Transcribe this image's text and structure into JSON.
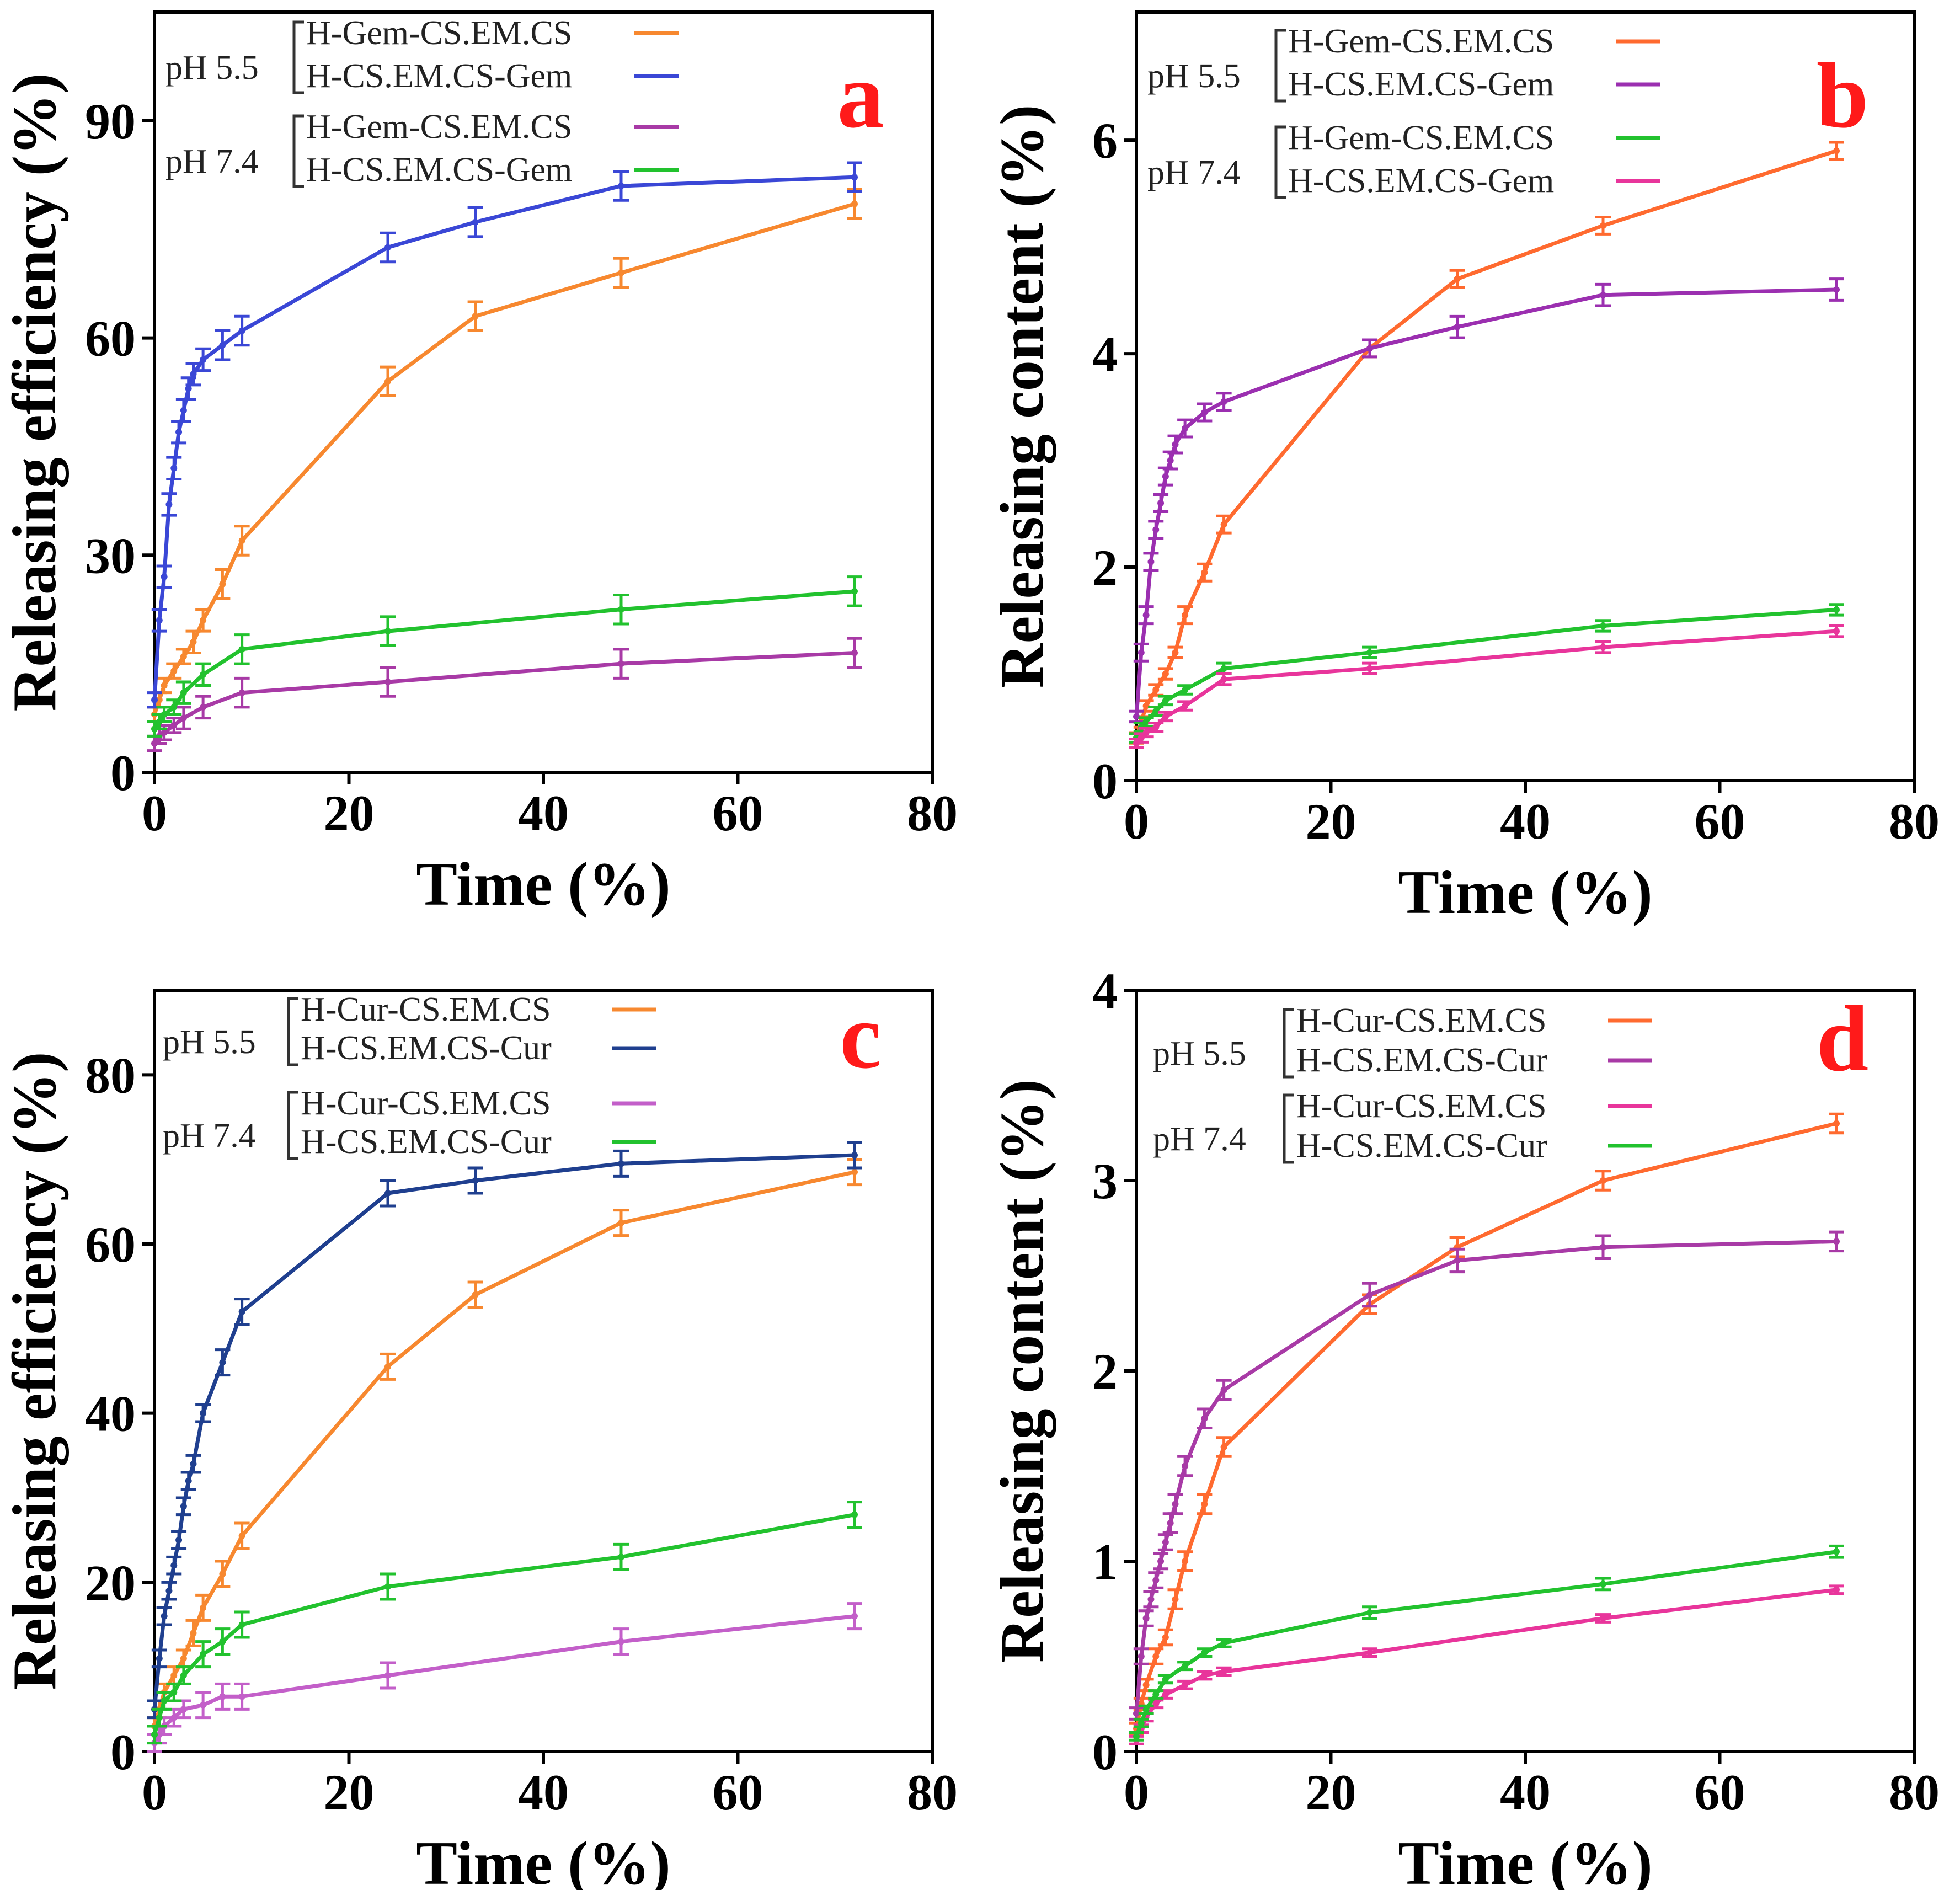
{
  "figure": {
    "panels": [
      "a",
      "b",
      "c",
      "d"
    ]
  },
  "chart_data": [
    {
      "panel": "a",
      "type": "line",
      "title": "",
      "xlabel": "Time (%)",
      "ylabel": "Releasing efficiency (%)",
      "xlim": [
        0,
        80
      ],
      "ylim": [
        0,
        105
      ],
      "xticks": [
        0,
        20,
        40,
        60,
        80
      ],
      "yticks": [
        0,
        30,
        60,
        90
      ],
      "legend_groups": [
        {
          "label": "pH 5.5",
          "entries": [
            0,
            1
          ]
        },
        {
          "label": "pH 7.4",
          "entries": [
            2,
            3
          ]
        }
      ],
      "series": [
        {
          "name": "H-Gem-CS.EM.CS",
          "color": "#f7882f",
          "x": [
            0,
            0.5,
            1,
            2,
            3,
            4,
            5,
            7,
            9,
            24,
            33,
            48,
            72
          ],
          "y": [
            8,
            10,
            12,
            14,
            16,
            18,
            21,
            26,
            32,
            54,
            63,
            69,
            78.5
          ],
          "err": [
            1,
            1,
            1,
            1,
            1,
            1.5,
            1.5,
            2,
            2,
            2,
            2,
            2,
            2
          ]
        },
        {
          "name": "H-CS.EM.CS-Gem",
          "color": "#3a47d6",
          "x": [
            0,
            0.5,
            1,
            1.5,
            2,
            2.5,
            3,
            3.5,
            4,
            5,
            7,
            9,
            24,
            33,
            48,
            72
          ],
          "y": [
            10,
            21,
            27,
            37,
            42,
            47,
            50,
            53,
            55,
            57,
            59,
            61,
            72.5,
            76,
            81,
            82.2
          ],
          "err": [
            1,
            1.5,
            1.5,
            1.5,
            1.5,
            1.5,
            1.5,
            1.5,
            1.5,
            1.5,
            2,
            2,
            2,
            2,
            2,
            2
          ]
        },
        {
          "name": "H-Gem-CS.EM.CS",
          "color": "#a83aa6",
          "x": [
            0,
            0.5,
            1,
            2,
            3,
            5,
            9,
            24,
            48,
            72
          ],
          "y": [
            4,
            5,
            5.5,
            6.5,
            7.5,
            9,
            11,
            12.5,
            15,
            16.5
          ],
          "err": [
            1,
            1,
            1,
            1,
            1.5,
            1.5,
            2,
            2,
            2,
            2
          ]
        },
        {
          "name": "H-CS.EM.CS-Gem",
          "color": "#22c22e",
          "x": [
            0,
            0.5,
            1,
            2,
            3,
            5,
            9,
            24,
            48,
            72
          ],
          "y": [
            6,
            7,
            8,
            9,
            11,
            13.5,
            17,
            19.5,
            22.5,
            25
          ],
          "err": [
            1,
            1,
            1,
            1,
            1.5,
            1.5,
            2,
            2,
            2,
            2
          ]
        }
      ]
    },
    {
      "panel": "b",
      "type": "line",
      "title": "",
      "xlabel": "Time (%)",
      "ylabel": "Releasing content (%)",
      "xlim": [
        0,
        80
      ],
      "ylim": [
        0,
        7.2
      ],
      "xticks": [
        0,
        20,
        40,
        60,
        80
      ],
      "yticks": [
        0,
        2,
        4,
        6
      ],
      "legend_groups": [
        {
          "label": "pH 5.5",
          "entries": [
            0,
            1
          ]
        },
        {
          "label": "pH 7.4",
          "entries": [
            2,
            3
          ]
        }
      ],
      "series": [
        {
          "name": "H-Gem-CS.EM.CS",
          "color": "#ff6a2f",
          "x": [
            0,
            0.5,
            1,
            2,
            3,
            4,
            5,
            7,
            9,
            24,
            33,
            48,
            72
          ],
          "y": [
            0.4,
            0.55,
            0.7,
            0.85,
            1.0,
            1.2,
            1.55,
            1.95,
            2.4,
            4.05,
            4.7,
            5.2,
            5.9
          ],
          "err": [
            0.05,
            0.05,
            0.05,
            0.05,
            0.05,
            0.05,
            0.08,
            0.08,
            0.08,
            0.08,
            0.08,
            0.08,
            0.08
          ]
        },
        {
          "name": "H-CS.EM.CS-Gem",
          "color": "#9b2fb0",
          "x": [
            0,
            0.5,
            1,
            1.5,
            2,
            2.5,
            3,
            3.5,
            4,
            5,
            7,
            9,
            24,
            33,
            48,
            72
          ],
          "y": [
            0.6,
            1.2,
            1.55,
            2.05,
            2.35,
            2.6,
            2.85,
            3.0,
            3.15,
            3.3,
            3.45,
            3.55,
            4.05,
            4.25,
            4.55,
            4.6
          ],
          "err": [
            0.05,
            0.08,
            0.08,
            0.08,
            0.08,
            0.08,
            0.08,
            0.08,
            0.08,
            0.08,
            0.08,
            0.08,
            0.08,
            0.1,
            0.1,
            0.1
          ]
        },
        {
          "name": "H-Gem-CS.EM.CS",
          "color": "#22c22e",
          "x": [
            0,
            0.5,
            1,
            2,
            3,
            5,
            9,
            24,
            48,
            72
          ],
          "y": [
            0.4,
            0.5,
            0.55,
            0.65,
            0.75,
            0.85,
            1.05,
            1.2,
            1.45,
            1.6
          ],
          "err": [
            0.04,
            0.04,
            0.04,
            0.04,
            0.04,
            0.04,
            0.05,
            0.05,
            0.05,
            0.05
          ]
        },
        {
          "name": "H-CS.EM.CS-Gem",
          "color": "#e8359b",
          "x": [
            0,
            0.5,
            1,
            2,
            3,
            5,
            9,
            24,
            48,
            72
          ],
          "y": [
            0.35,
            0.4,
            0.45,
            0.5,
            0.6,
            0.7,
            0.95,
            1.05,
            1.25,
            1.4
          ],
          "err": [
            0.04,
            0.04,
            0.04,
            0.04,
            0.04,
            0.04,
            0.05,
            0.05,
            0.05,
            0.05
          ]
        }
      ]
    },
    {
      "panel": "c",
      "type": "line",
      "title": "",
      "xlabel": "Time (%)",
      "ylabel": "Releasing efficiency (%)",
      "xlim": [
        0,
        80
      ],
      "ylim": [
        0,
        90
      ],
      "xticks": [
        0,
        20,
        40,
        60,
        80
      ],
      "yticks": [
        0,
        20,
        40,
        60,
        80
      ],
      "legend_groups": [
        {
          "label": "pH 5.5",
          "entries": [
            0,
            1
          ]
        },
        {
          "label": "pH 7.4",
          "entries": [
            2,
            3
          ]
        }
      ],
      "series": [
        {
          "name": "H-Cur-CS.EM.CS",
          "color": "#f7882f",
          "x": [
            0,
            0.5,
            1,
            2,
            3,
            4,
            5,
            7,
            9,
            24,
            33,
            48,
            72
          ],
          "y": [
            3,
            5,
            7,
            9,
            11,
            14,
            17,
            21,
            25.5,
            45.5,
            54,
            62.5,
            68.5
          ],
          "err": [
            1,
            1,
            1,
            1,
            1,
            1.5,
            1.5,
            1.5,
            1.5,
            1.5,
            1.5,
            1.5,
            1.5
          ]
        },
        {
          "name": "H-CS.EM.CS-Cur",
          "color": "#1f3f8f",
          "x": [
            0,
            0.5,
            1,
            1.5,
            2,
            2.5,
            3,
            3.5,
            4,
            5,
            7,
            9,
            24,
            33,
            48,
            72
          ],
          "y": [
            5,
            11,
            16,
            19,
            22,
            25,
            29,
            32,
            34,
            40,
            46,
            52,
            66,
            67.5,
            69.5,
            70.5
          ],
          "err": [
            1,
            1,
            1,
            1,
            1,
            1,
            1,
            1,
            1,
            1,
            1.5,
            1.5,
            1.5,
            1.5,
            1.5,
            1.5
          ]
        },
        {
          "name": "H-Cur-CS.EM.CS",
          "color": "#c35fc9",
          "x": [
            0,
            0.5,
            1,
            2,
            3,
            5,
            7,
            9,
            24,
            48,
            72
          ],
          "y": [
            1,
            2,
            3,
            4,
            5,
            5.5,
            6.5,
            6.5,
            9,
            13,
            16
          ],
          "err": [
            1,
            1,
            1,
            1,
            1,
            1.5,
            1.5,
            1.5,
            1.5,
            1.5,
            1.5
          ]
        },
        {
          "name": "H-CS.EM.CS-Cur",
          "color": "#22c22e",
          "x": [
            0,
            0.5,
            1,
            2,
            3,
            5,
            7,
            9,
            24,
            48,
            72
          ],
          "y": [
            2,
            4,
            6,
            7,
            9,
            11.5,
            13,
            15,
            19.5,
            23,
            28
          ],
          "err": [
            1,
            1,
            1,
            1,
            1,
            1.5,
            1.5,
            1.5,
            1.5,
            1.5,
            1.5
          ]
        }
      ]
    },
    {
      "panel": "d",
      "type": "line",
      "title": "",
      "xlabel": "Time (%)",
      "ylabel": "Releasing content (%)",
      "xlim": [
        0,
        80
      ],
      "ylim": [
        0,
        4
      ],
      "xticks": [
        0,
        20,
        40,
        60,
        80
      ],
      "yticks": [
        0,
        1,
        2,
        3,
        4
      ],
      "legend_groups": [
        {
          "label": "pH 5.5",
          "entries": [
            0,
            1
          ]
        },
        {
          "label": "pH 7.4",
          "entries": [
            2,
            3
          ]
        }
      ],
      "series": [
        {
          "name": "H-Cur-CS.EM.CS",
          "color": "#ff6a2f",
          "x": [
            0,
            0.5,
            1,
            2,
            3,
            4,
            5,
            7,
            9,
            24,
            33,
            48,
            72
          ],
          "y": [
            0.12,
            0.25,
            0.35,
            0.5,
            0.6,
            0.8,
            1.0,
            1.3,
            1.6,
            2.35,
            2.65,
            3.0,
            3.3
          ],
          "err": [
            0.03,
            0.03,
            0.03,
            0.04,
            0.04,
            0.05,
            0.05,
            0.05,
            0.05,
            0.05,
            0.05,
            0.05,
            0.05
          ]
        },
        {
          "name": "H-CS.EM.CS-Cur",
          "color": "#a83aa6",
          "x": [
            0,
            0.5,
            1,
            1.5,
            2,
            2.5,
            3,
            3.5,
            4,
            5,
            7,
            9,
            24,
            33,
            48,
            72
          ],
          "y": [
            0.2,
            0.5,
            0.7,
            0.8,
            0.9,
            1.0,
            1.1,
            1.2,
            1.3,
            1.5,
            1.75,
            1.9,
            2.4,
            2.58,
            2.65,
            2.68
          ],
          "err": [
            0.03,
            0.04,
            0.04,
            0.04,
            0.04,
            0.04,
            0.04,
            0.05,
            0.05,
            0.05,
            0.05,
            0.05,
            0.06,
            0.06,
            0.06,
            0.05
          ]
        },
        {
          "name": "H-Cur-CS.EM.CS",
          "color": "#e8359b",
          "x": [
            0,
            0.5,
            1,
            2,
            3,
            5,
            7,
            9,
            24,
            48,
            72
          ],
          "y": [
            0.06,
            0.12,
            0.18,
            0.25,
            0.3,
            0.35,
            0.4,
            0.42,
            0.52,
            0.7,
            0.85
          ],
          "err": [
            0.02,
            0.02,
            0.02,
            0.02,
            0.02,
            0.02,
            0.02,
            0.02,
            0.02,
            0.02,
            0.02
          ]
        },
        {
          "name": "H-CS.EM.CS-Cur",
          "color": "#22c22e",
          "x": [
            0,
            0.5,
            1,
            2,
            3,
            5,
            7,
            9,
            24,
            48,
            72
          ],
          "y": [
            0.08,
            0.15,
            0.22,
            0.3,
            0.38,
            0.45,
            0.52,
            0.57,
            0.73,
            0.88,
            1.05
          ],
          "err": [
            0.02,
            0.02,
            0.02,
            0.02,
            0.02,
            0.02,
            0.02,
            0.02,
            0.03,
            0.03,
            0.03
          ]
        }
      ]
    }
  ]
}
